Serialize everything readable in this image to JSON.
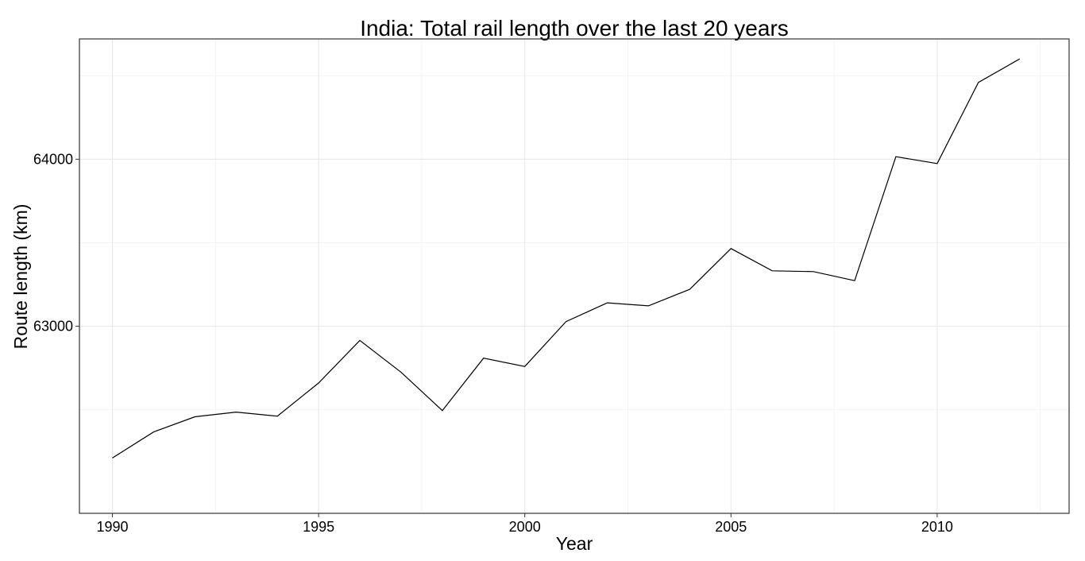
{
  "chart_data": {
    "type": "line",
    "title": "India: Total rail length over the last 20 years",
    "xlabel": "Year",
    "ylabel": "Route length (km)",
    "xlim": [
      1989.2,
      2013.2
    ],
    "ylim": [
      61880,
      64720
    ],
    "x_major_ticks": [
      1990,
      1995,
      2000,
      2005,
      2010
    ],
    "x_major_tick_labels": [
      "1990",
      "1995",
      "2000",
      "2005",
      "2010"
    ],
    "x_minor_ticks": [
      1992.5,
      1997.5,
      2002.5,
      2007.5,
      2012.5
    ],
    "y_major_ticks": [
      63000,
      64000
    ],
    "y_major_tick_labels": [
      "63000",
      "64000"
    ],
    "y_minor_ticks": [
      62500,
      63500,
      64500
    ],
    "grid": true,
    "series": [
      {
        "x": [
          1990,
          1991,
          1992,
          1993,
          1994,
          1995,
          1996,
          1997,
          1998,
          1999,
          2000,
          2001,
          2002,
          2003,
          2004,
          2005,
          2006,
          2007,
          2008,
          2009,
          2010,
          2011,
          2012
        ],
        "values": [
          62211,
          62367,
          62458,
          62486,
          62462,
          62660,
          62915,
          62725,
          62495,
          62809,
          62759,
          63028,
          63140,
          63122,
          63221,
          63465,
          63332,
          63327,
          63273,
          64015,
          63974,
          64460,
          64600
        ]
      }
    ]
  }
}
